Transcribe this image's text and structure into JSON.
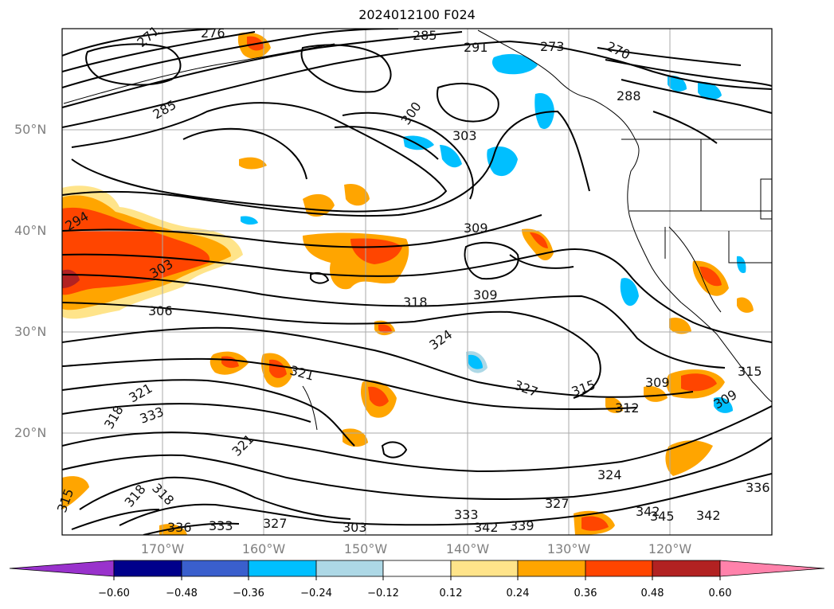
{
  "title": "2024012100 F024",
  "lat_labels": [
    "50°N",
    "40°N",
    "30°N",
    "20°N"
  ],
  "lon_labels": [
    "170°W",
    "160°W",
    "150°W",
    "140°W",
    "130°W",
    "120°W"
  ],
  "colorbar": {
    "ticks": [
      "−0.60",
      "−0.48",
      "−0.36",
      "−0.24",
      "−0.12",
      "0.12",
      "0.24",
      "0.36",
      "0.48",
      "0.60"
    ],
    "colors": [
      "#9932cc",
      "#00008b",
      "#3a5fcd",
      "#00bfff",
      "#add8e6",
      "#ffffff",
      "#ffe48a",
      "#ffa500",
      "#ff4500",
      "#b22222",
      "#ff82ab"
    ]
  },
  "contour_labels": [
    "271",
    "276",
    "285",
    "291",
    "273",
    "270",
    "285",
    "288",
    "294",
    "300",
    "303",
    "309",
    "303",
    "306",
    "309",
    "318",
    "324",
    "327",
    "321",
    "321",
    "318",
    "315",
    "312",
    "309",
    "315",
    "321",
    "333",
    "318",
    "336",
    "342",
    "345",
    "342",
    "339",
    "327",
    "324",
    "333",
    "318",
    "315",
    "309",
    "336",
    "333",
    "303",
    "342",
    "327"
  ]
}
